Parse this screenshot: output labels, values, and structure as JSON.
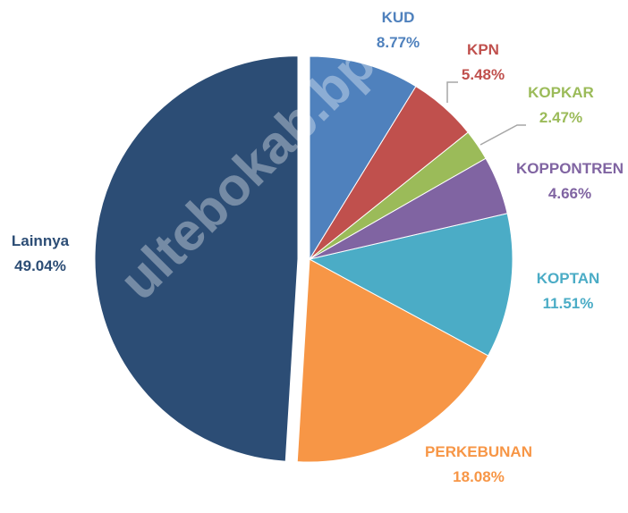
{
  "chart_data": {
    "type": "pie",
    "categories": [
      "KUD",
      "KPN",
      "KOPKAR",
      "KOPPONTREN",
      "KOPTAN",
      "PERKEBUNAN",
      "Lainnya"
    ],
    "values": [
      8.77,
      5.48,
      2.47,
      4.66,
      11.51,
      18.08,
      49.04
    ],
    "value_labels": [
      "8.77%",
      "5.48%",
      "2.47%",
      "4.66%",
      "11.51%",
      "18.08%",
      "49.04%"
    ],
    "colors": [
      "#4f81bd",
      "#c0504d",
      "#9bbb59",
      "#8064a2",
      "#4bacc6",
      "#f79646",
      "#2c4d75"
    ],
    "watermark": "ultebokab.bps.go.id"
  }
}
